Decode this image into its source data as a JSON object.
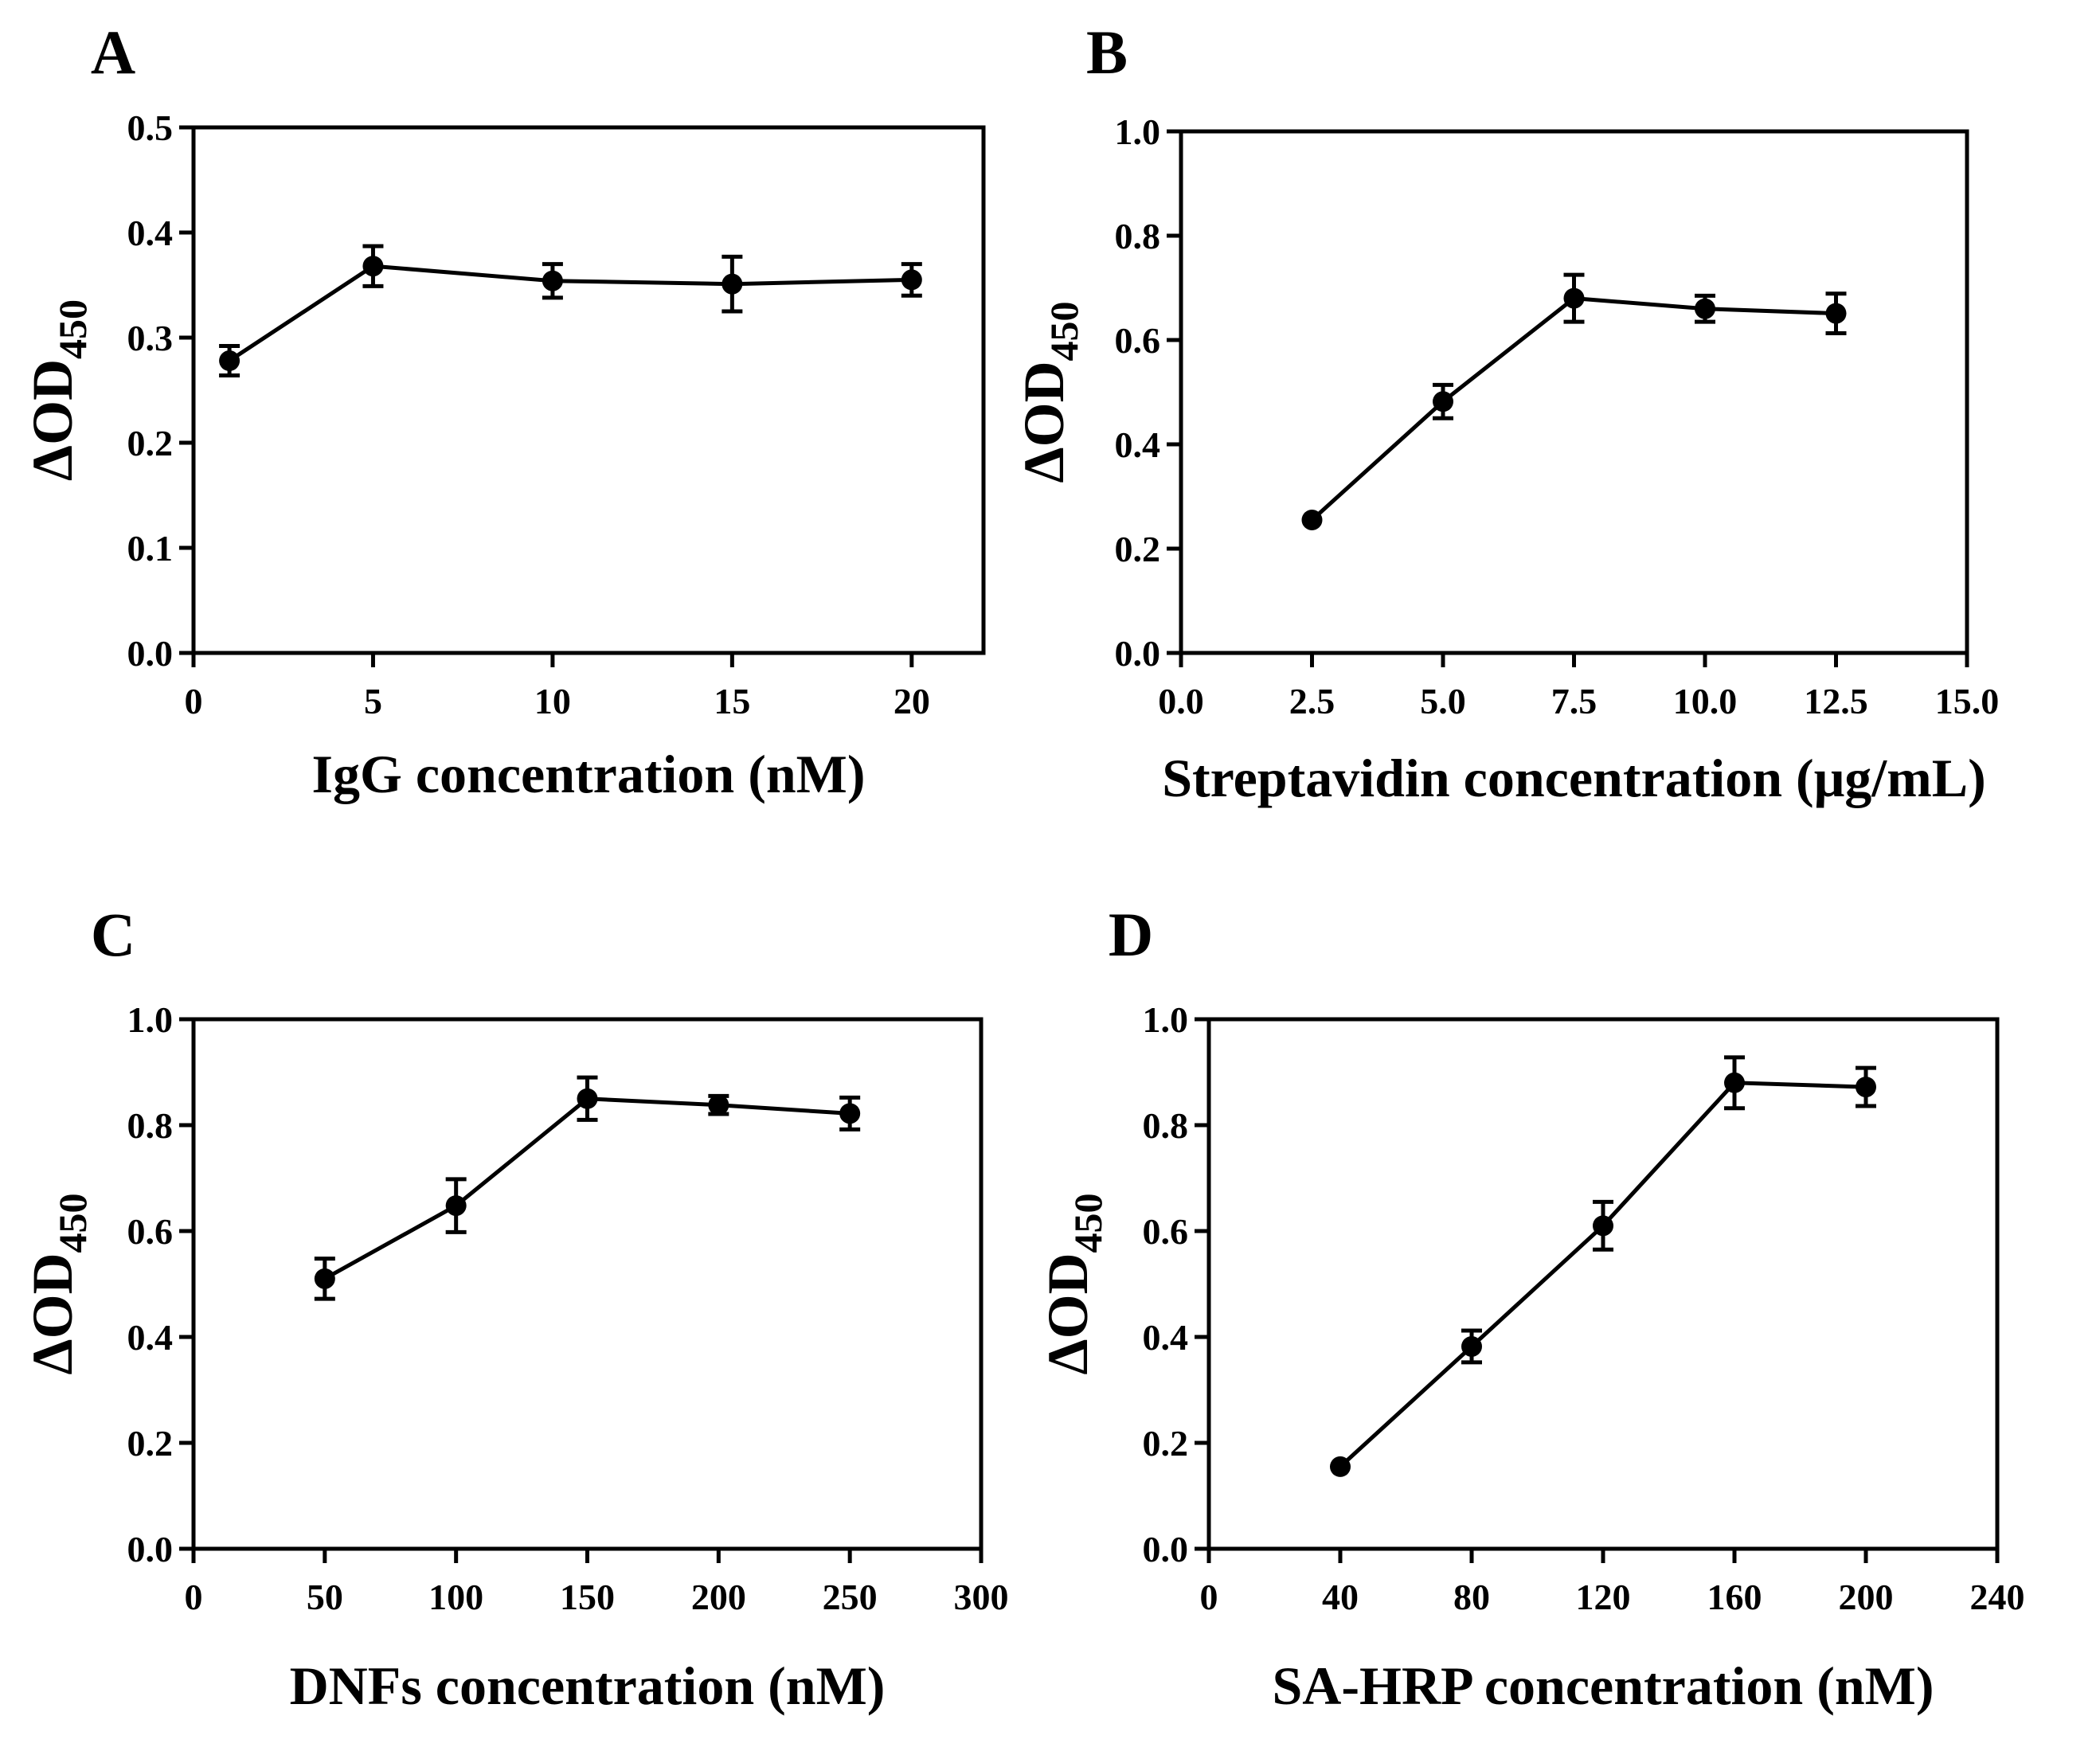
{
  "chart_data": [
    {
      "type": "line",
      "panel": "A",
      "xlabel": "IgG concentration (nM)",
      "ylabel": "ΔOD",
      "ylabel_sub": "450",
      "xlim": [
        0,
        22
      ],
      "ylim": [
        0.0,
        0.5
      ],
      "xticks": [
        "0",
        "5",
        "10",
        "15",
        "20"
      ],
      "xtick_values": [
        0,
        5,
        10,
        15,
        20
      ],
      "yticks": [
        "0.0",
        "0.1",
        "0.2",
        "0.3",
        "0.4",
        "0.5"
      ],
      "ytick_values": [
        0.0,
        0.1,
        0.2,
        0.3,
        0.4,
        0.5
      ],
      "series": [
        {
          "name": "IgG",
          "x": [
            1,
            5,
            10,
            15,
            20
          ],
          "y": [
            0.278,
            0.368,
            0.354,
            0.351,
            0.355
          ],
          "err": [
            0.014,
            0.019,
            0.016,
            0.026,
            0.015
          ]
        }
      ]
    },
    {
      "type": "line",
      "panel": "B",
      "xlabel": "Streptavidin concentration (μg/mL)",
      "ylabel": "ΔOD",
      "ylabel_sub": "450",
      "xlim": [
        0.0,
        15.0
      ],
      "ylim": [
        0.0,
        1.0
      ],
      "xticks": [
        "0.0",
        "2.5",
        "5.0",
        "7.5",
        "10.0",
        "12.5",
        "15.0"
      ],
      "xtick_values": [
        0.0,
        2.5,
        5.0,
        7.5,
        10.0,
        12.5,
        15.0
      ],
      "yticks": [
        "0.0",
        "0.2",
        "0.4",
        "0.6",
        "0.8",
        "1.0"
      ],
      "ytick_values": [
        0.0,
        0.2,
        0.4,
        0.6,
        0.8,
        1.0
      ],
      "series": [
        {
          "name": "Streptavidin",
          "x": [
            2.5,
            5.0,
            7.5,
            10.0,
            12.5
          ],
          "y": [
            0.255,
            0.482,
            0.68,
            0.66,
            0.651
          ],
          "err": [
            0.0,
            0.032,
            0.045,
            0.025,
            0.038
          ]
        }
      ]
    },
    {
      "type": "line",
      "panel": "C",
      "xlabel": "DNFs concentration (nM)",
      "ylabel": "ΔOD",
      "ylabel_sub": "450",
      "xlim": [
        0,
        300
      ],
      "ylim": [
        0.0,
        1.0
      ],
      "xticks": [
        "0",
        "50",
        "100",
        "150",
        "200",
        "250",
        "300"
      ],
      "xtick_values": [
        0,
        50,
        100,
        150,
        200,
        250,
        300
      ],
      "yticks": [
        "0.0",
        "0.2",
        "0.4",
        "0.6",
        "0.8",
        "1.0"
      ],
      "ytick_values": [
        0.0,
        0.2,
        0.4,
        0.6,
        0.8,
        1.0
      ],
      "series": [
        {
          "name": "DNFs",
          "x": [
            50,
            100,
            150,
            200,
            250
          ],
          "y": [
            0.51,
            0.648,
            0.85,
            0.838,
            0.822
          ],
          "err": [
            0.038,
            0.05,
            0.04,
            0.017,
            0.03
          ]
        }
      ]
    },
    {
      "type": "line",
      "panel": "D",
      "xlabel": "SA-HRP concentration (nM)",
      "ylabel": "ΔOD",
      "ylabel_sub": "450",
      "xlim": [
        0,
        240
      ],
      "ylim": [
        0.0,
        1.0
      ],
      "xticks": [
        "0",
        "40",
        "80",
        "120",
        "160",
        "200",
        "240"
      ],
      "xtick_values": [
        0,
        40,
        80,
        120,
        160,
        200,
        240
      ],
      "yticks": [
        "0.0",
        "0.2",
        "0.4",
        "0.6",
        "0.8",
        "1.0"
      ],
      "ytick_values": [
        0.0,
        0.2,
        0.4,
        0.6,
        0.8,
        1.0
      ],
      "series": [
        {
          "name": "SA-HRP",
          "x": [
            40,
            80,
            120,
            160,
            200
          ],
          "y": [
            0.155,
            0.382,
            0.61,
            0.88,
            0.872
          ],
          "err": [
            0.0,
            0.03,
            0.045,
            0.048,
            0.036
          ]
        }
      ]
    }
  ]
}
